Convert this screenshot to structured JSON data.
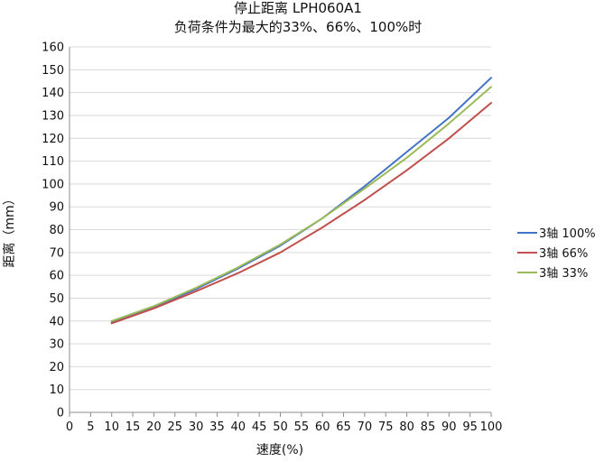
{
  "chart_data": {
    "type": "line",
    "title": [
      "停止距离 LPH060A1",
      "负荷条件为最大的33%、66%、100%时"
    ],
    "xlabel": "速度(%)",
    "ylabel": "距离（mm）",
    "xlim": [
      0,
      100
    ],
    "ylim": [
      0,
      160
    ],
    "x_ticks": [
      0,
      5,
      10,
      15,
      20,
      25,
      30,
      35,
      40,
      45,
      50,
      55,
      60,
      65,
      70,
      75,
      80,
      85,
      90,
      95,
      100
    ],
    "y_ticks": [
      0,
      10,
      20,
      30,
      40,
      50,
      60,
      70,
      80,
      90,
      100,
      110,
      120,
      130,
      140,
      150,
      160
    ],
    "grid": true,
    "legend_position": "right",
    "x": [
      10,
      20,
      30,
      40,
      50,
      60,
      70,
      80,
      90,
      100
    ],
    "series": [
      {
        "name": "3轴   100%",
        "color": "#4472C4",
        "values": [
          39.5,
          46,
          54,
          63,
          73,
          85,
          99,
          114,
          129,
          146.5
        ]
      },
      {
        "name": "3轴   66%",
        "color": "#C0504D",
        "values": [
          39,
          45.5,
          53,
          61,
          70,
          81,
          93,
          106,
          120,
          135.5
        ]
      },
      {
        "name": "3轴   33%",
        "color": "#9BBB59",
        "values": [
          40,
          46.5,
          54.5,
          63.5,
          73.5,
          85,
          98,
          111.5,
          126.5,
          142.5
        ]
      }
    ]
  }
}
